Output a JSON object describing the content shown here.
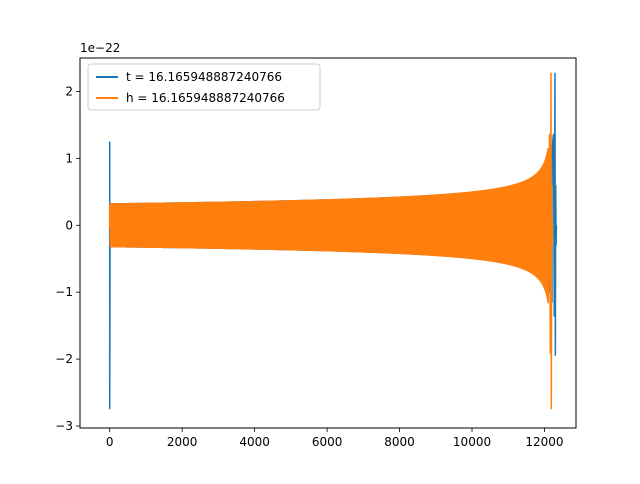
{
  "chart_data": {
    "type": "line",
    "title": "",
    "xlabel": "",
    "ylabel": "",
    "y_offset_text": "1e−22",
    "y_scale_factor": 1e-22,
    "xlim": [
      -820,
      12870
    ],
    "ylim": [
      -3.03,
      2.5
    ],
    "xticks": [
      0,
      2000,
      4000,
      6000,
      8000,
      10000,
      12000
    ],
    "yticks": [
      -3,
      -2,
      -1,
      0,
      1,
      2
    ],
    "xtick_labels": [
      "0",
      "2000",
      "4000",
      "6000",
      "8000",
      "10000",
      "12000"
    ],
    "ytick_labels": [
      "−3",
      "−2",
      "−1",
      "0",
      "1",
      "2"
    ],
    "grid": false,
    "legend_position": "upper-left",
    "series": [
      {
        "name": "t = 16.165948887240766",
        "color": "#1f77b4",
        "pattern": "chirp",
        "x_start": 0,
        "x_end": 12290,
        "x_merger": 12290,
        "envelope_start": 0.33,
        "envelope_end": 1.35,
        "start_spike": [
          -2.75,
          1.25
        ],
        "end_spike": [
          -1.95,
          2.28
        ]
      },
      {
        "name": "h = 16.165948887240766",
        "color": "#ff7f0e",
        "pattern": "chirp",
        "x_start": 0,
        "x_end": 12180,
        "x_merger": 12180,
        "envelope_start": 0.33,
        "envelope_end": 1.4,
        "start_spike": [
          -0.05,
          0.3
        ],
        "end_spike": [
          -2.75,
          2.28
        ]
      }
    ]
  }
}
